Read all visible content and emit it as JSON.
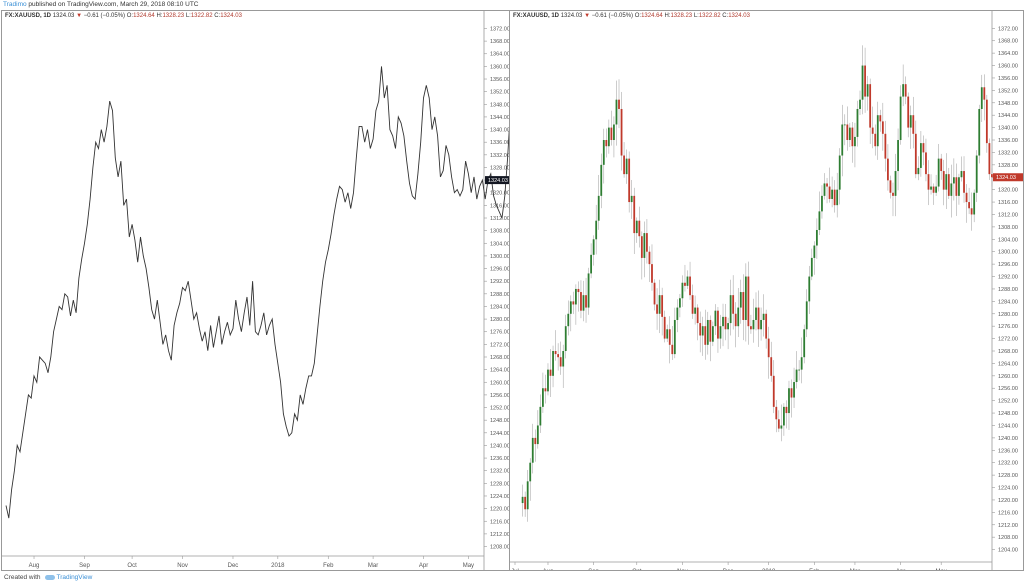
{
  "header": {
    "author": "Tradimo",
    "published": " published on TradingView.com, March 29, 2018 08:10 UTC"
  },
  "legend": {
    "symbol": "FX:XAUUSD, 1D",
    "last": "1324.03",
    "arrow": "▼",
    "change": "−0.61 (−0.05%)",
    "o_label": "O:",
    "o": "1324.64",
    "h_label": "H:",
    "h": "1328.23",
    "l_label": "L:",
    "l": "1322.82",
    "c_label": "C:",
    "c": "1324.03"
  },
  "footer": {
    "created_with": "Created with",
    "brand": "TradingView"
  },
  "colors": {
    "up": "#2e7d32",
    "down": "#c0392b",
    "line": "#333333",
    "last_left_bg": "#131722",
    "last_right_bg": "#c0392b"
  },
  "chart_data": [
    {
      "type": "line",
      "series": [
        {
          "values": [
            1221,
            1217,
            1226,
            1232,
            1240,
            1238,
            1244,
            1250,
            1256,
            1255,
            1262,
            1260,
            1268,
            1267,
            1266,
            1263,
            1268,
            1276,
            1280,
            1284,
            1283,
            1288,
            1287,
            1281,
            1286,
            1282,
            1293,
            1299,
            1304,
            1310,
            1318,
            1328,
            1336,
            1334,
            1340,
            1336,
            1341,
            1349,
            1346,
            1331,
            1325,
            1330,
            1316,
            1318,
            1306,
            1310,
            1305,
            1298,
            1306,
            1300,
            1296,
            1290,
            1283,
            1280,
            1286,
            1279,
            1272,
            1275,
            1270,
            1267,
            1278,
            1282,
            1285,
            1290,
            1289,
            1292,
            1286,
            1280,
            1282,
            1277,
            1273,
            1276,
            1270,
            1278,
            1271,
            1276,
            1281,
            1272,
            1276,
            1279,
            1275,
            1277,
            1286,
            1280,
            1276,
            1282,
            1287,
            1278,
            1292,
            1276,
            1275,
            1278,
            1282,
            1275,
            1278,
            1280,
            1272,
            1266,
            1260,
            1250,
            1246,
            1243,
            1244,
            1250,
            1248,
            1256,
            1253,
            1258,
            1262,
            1262,
            1266,
            1275,
            1284,
            1292,
            1298,
            1302,
            1307,
            1313,
            1318,
            1322,
            1321,
            1317,
            1320,
            1315,
            1320,
            1331,
            1341,
            1341,
            1336,
            1340,
            1334,
            1337,
            1346,
            1349,
            1360,
            1350,
            1354,
            1340,
            1338,
            1334,
            1344,
            1342,
            1338,
            1330,
            1323,
            1319,
            1318,
            1326,
            1336,
            1350,
            1354,
            1350,
            1340,
            1344,
            1338,
            1325,
            1327,
            1335,
            1332,
            1325,
            1320,
            1321,
            1319,
            1321,
            1330,
            1326,
            1320,
            1325,
            1318,
            1322,
            1324,
            1318,
            1324,
            1326,
            1319,
            1316,
            1314,
            1312,
            1319,
            1331,
            1346,
            1353,
            1349,
            1335,
            1325,
            1324
          ]
        }
      ],
      "ylim": [
        1205,
        1375
      ],
      "y_ticks": [
        "1372.00",
        "1368.00",
        "1364.00",
        "1360.00",
        "1356.00",
        "1352.00",
        "1348.00",
        "1344.00",
        "1340.00",
        "1336.00",
        "1332.00",
        "1328.00",
        "1324.00",
        "1320.00",
        "1316.00",
        "1312.00",
        "1308.00",
        "1304.00",
        "1300.00",
        "1296.00",
        "1292.00",
        "1288.00",
        "1284.00",
        "1280.00",
        "1276.00",
        "1272.00",
        "1268.00",
        "1264.00",
        "1260.00",
        "1256.00",
        "1252.00",
        "1248.00",
        "1244.00",
        "1240.00",
        "1236.00",
        "1232.00",
        "1228.00",
        "1224.00",
        "1220.00",
        "1216.00",
        "1212.00",
        "1208.00"
      ],
      "x_ticks": [
        {
          "label": "Aug",
          "i": 10
        },
        {
          "label": "Sep",
          "i": 28
        },
        {
          "label": "Oct",
          "i": 45
        },
        {
          "label": "Nov",
          "i": 63
        },
        {
          "label": "Dec",
          "i": 81
        },
        {
          "label": "2018",
          "i": 97
        },
        {
          "label": "Feb",
          "i": 115
        },
        {
          "label": "Mar",
          "i": 131
        },
        {
          "label": "Apr",
          "i": 149
        },
        {
          "label": "May",
          "i": 165
        }
      ],
      "x_count": 172,
      "last_value": "1324.03"
    },
    {
      "type": "candlestick",
      "ylim": [
        1200,
        1375
      ],
      "y_ticks": [
        "1372.00",
        "1368.00",
        "1364.00",
        "1360.00",
        "1356.00",
        "1352.00",
        "1348.00",
        "1344.00",
        "1340.00",
        "1336.00",
        "1332.00",
        "1328.00",
        "1324.00",
        "1320.00",
        "1316.00",
        "1312.00",
        "1308.00",
        "1304.00",
        "1300.00",
        "1296.00",
        "1292.00",
        "1288.00",
        "1284.00",
        "1280.00",
        "1276.00",
        "1272.00",
        "1268.00",
        "1264.00",
        "1260.00",
        "1256.00",
        "1252.00",
        "1248.00",
        "1244.00",
        "1240.00",
        "1236.00",
        "1232.00",
        "1228.00",
        "1224.00",
        "1220.00",
        "1216.00",
        "1212.00",
        "1208.00",
        "1204.00",
        "1200.00"
      ],
      "x_ticks": [
        {
          "label": "Jul",
          "i": 0
        },
        {
          "label": "Aug",
          "i": 13
        },
        {
          "label": "Sep",
          "i": 31
        },
        {
          "label": "Oct",
          "i": 48
        },
        {
          "label": "Nov",
          "i": 66
        },
        {
          "label": "Dec",
          "i": 84
        },
        {
          "label": "2018",
          "i": 100
        },
        {
          "label": "Feb",
          "i": 118
        },
        {
          "label": "Mar",
          "i": 134
        },
        {
          "label": "Apr",
          "i": 152
        },
        {
          "label": "May",
          "i": 168
        }
      ],
      "x_count": 190,
      "lead": 3,
      "last_value": "1324.03"
    }
  ]
}
